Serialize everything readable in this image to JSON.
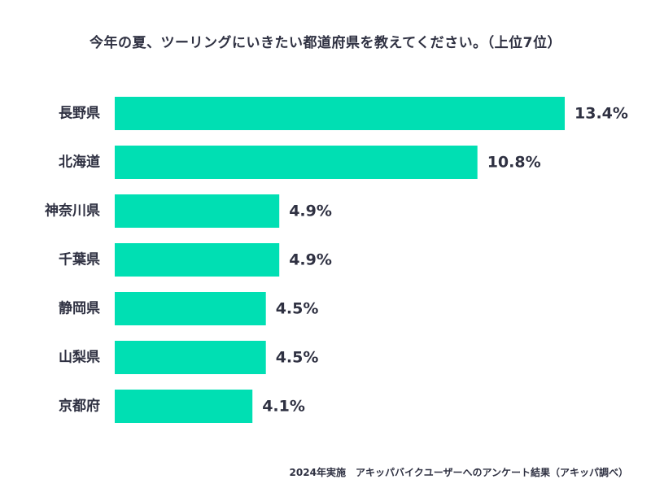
{
  "chart_data": {
    "type": "bar",
    "orientation": "horizontal",
    "title": "今年の夏、ツーリングにいきたい都道府県を教えてください。（上位7位）",
    "categories": [
      "長野県",
      "北海道",
      "神奈川県",
      "千葉県",
      "静岡県",
      "山梨県",
      "京都府"
    ],
    "values": [
      13.4,
      10.8,
      4.9,
      4.9,
      4.5,
      4.5,
      4.1
    ],
    "value_labels": [
      "13.4%",
      "10.8%",
      "4.9%",
      "4.9%",
      "4.5%",
      "4.5%",
      "4.1%"
    ],
    "xlim": [
      0,
      13.4
    ],
    "unit": "%",
    "grid": false,
    "legend": "none",
    "bar_color": "#00dfb3",
    "text_color": "#2f3142"
  },
  "footnote": "2024年実施　アキッパバイクユーザーへのアンケート結果（アキッパ調べ）"
}
